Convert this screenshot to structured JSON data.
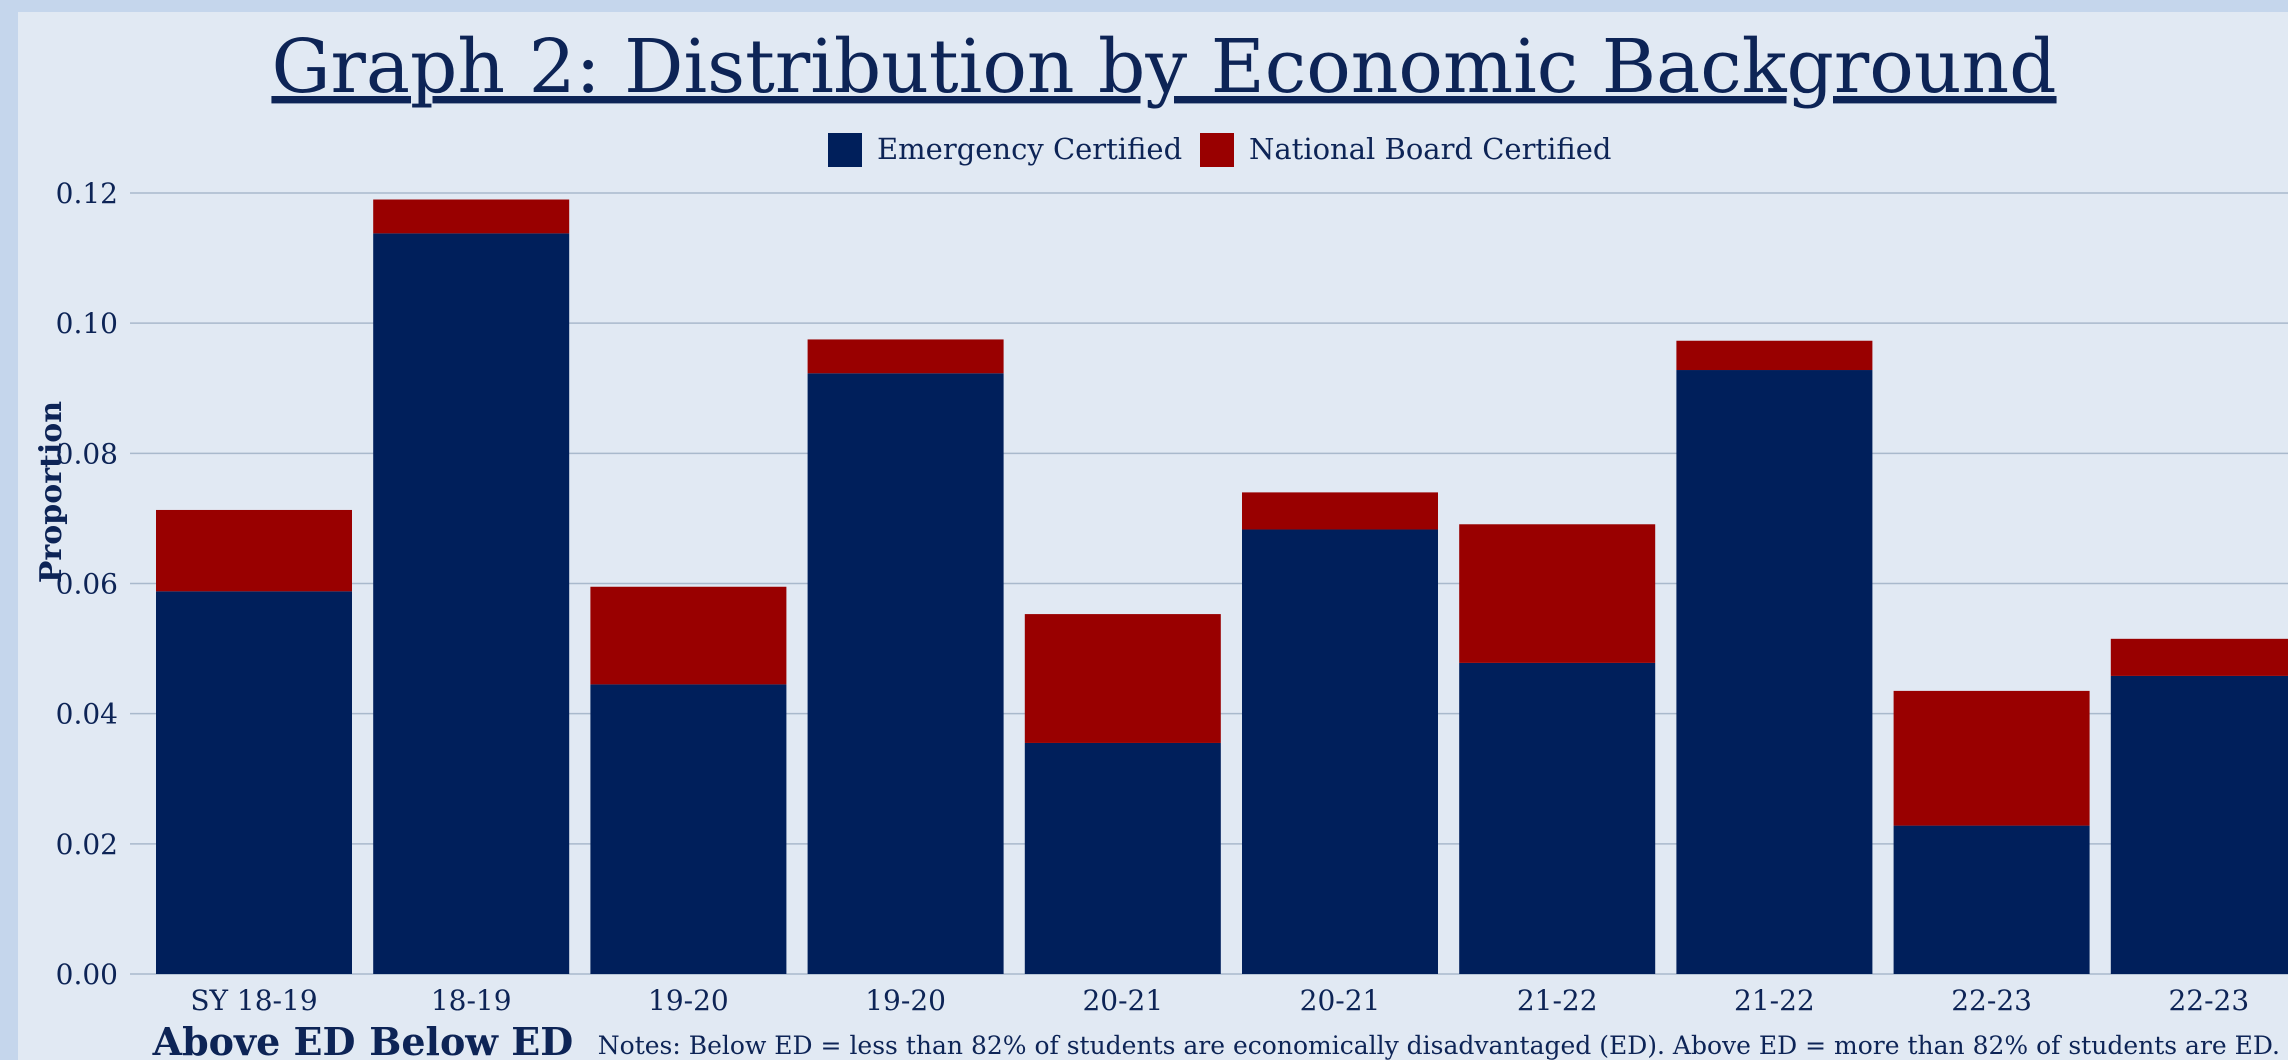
{
  "chart_data": {
    "type": "bar",
    "stacked": true,
    "title": "Graph 2: Distribution by Economic Background",
    "ylabel": "Proportion",
    "xlabel": "",
    "ylim": [
      0,
      0.12
    ],
    "yticks": [
      "0.00",
      "0.02",
      "0.04",
      "0.06",
      "0.08",
      "0.10",
      "0.12"
    ],
    "grid": true,
    "legend_position": "top-center",
    "categories": [
      "SY 18-19",
      "18-19",
      "19-20",
      "19-20",
      "20-21",
      "20-21",
      "21-22",
      "21-22",
      "22-23",
      "22-23"
    ],
    "group_labels": [
      "Above ED",
      "Below ED"
    ],
    "series": [
      {
        "name": "Emergency Certified",
        "color": "#001f5b",
        "values": [
          0.0588,
          0.1138,
          0.0445,
          0.0923,
          0.0355,
          0.0683,
          0.0478,
          0.0928,
          0.0228,
          0.0458
        ]
      },
      {
        "name": "National Board Certified",
        "color": "#990000",
        "values": [
          0.0125,
          0.0052,
          0.015,
          0.0052,
          0.0198,
          0.0057,
          0.0213,
          0.0045,
          0.0207,
          0.0057
        ]
      }
    ],
    "note": "Notes: Below ED = less than 82% of students are economically disadvantaged (ED). Above ED = more than 82% of students are ED."
  }
}
